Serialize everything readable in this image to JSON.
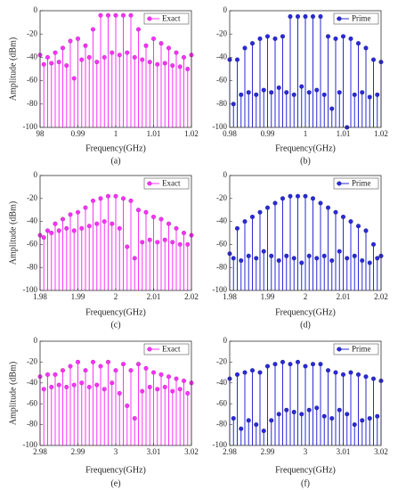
{
  "chart_data": [
    {
      "type": "stem",
      "caption": "(a)",
      "xlabel": "Frequency(GHz)",
      "ylabel": "Amplitude (dBm)",
      "legend": "upper right",
      "xlim": [
        0.98,
        1.02
      ],
      "xticks": [
        {
          "value": 0.98,
          "label": "98"
        },
        0.99,
        1,
        1.01,
        1.02
      ],
      "ylim": [
        -100,
        0
      ],
      "yticks": [
        0,
        -20,
        -40,
        -60,
        -80,
        -100
      ],
      "x": [
        0.98,
        0.981,
        0.982,
        0.983,
        0.984,
        0.985,
        0.986,
        0.987,
        0.988,
        0.989,
        0.99,
        0.991,
        0.992,
        0.993,
        0.994,
        0.995,
        0.996,
        0.997,
        0.998,
        0.999,
        1,
        1.001,
        1.002,
        1.003,
        1.004,
        1.005,
        1.006,
        1.007,
        1.008,
        1.009,
        1.01,
        1.011,
        1.012,
        1.013,
        1.014,
        1.015,
        1.016,
        1.017,
        1.018,
        1.019,
        1.02
      ],
      "series": [
        {
          "name": "Exact",
          "color": "#ff33ff",
          "values": [
            -38,
            -46,
            -40,
            -45,
            -36,
            -44,
            -32,
            -47,
            -26,
            -58,
            -24,
            -42,
            -30,
            -40,
            -16,
            -44,
            -4,
            -40,
            -4,
            -36,
            -4,
            -38,
            -4,
            -36,
            -4,
            -40,
            -16,
            -42,
            -30,
            -44,
            -24,
            -46,
            -28,
            -45,
            -32,
            -47,
            -36,
            -48,
            -40,
            -50,
            -38
          ]
        }
      ]
    },
    {
      "type": "stem",
      "caption": "(b)",
      "xlabel": "Frequency(GHz)",
      "legend": "upper right",
      "xlim": [
        0.98,
        1.02
      ],
      "xticks": [
        0.98,
        0.99,
        1,
        1.01,
        1.02
      ],
      "ylim": [
        -100,
        0
      ],
      "yticks": [
        0,
        -20,
        -40,
        -60,
        -80,
        -100
      ],
      "x": [
        0.98,
        0.981,
        0.982,
        0.983,
        0.984,
        0.985,
        0.986,
        0.987,
        0.988,
        0.989,
        0.99,
        0.991,
        0.992,
        0.993,
        0.994,
        0.995,
        0.996,
        0.997,
        0.998,
        0.999,
        1,
        1.001,
        1.002,
        1.003,
        1.004,
        1.005,
        1.006,
        1.007,
        1.008,
        1.009,
        1.01,
        1.011,
        1.012,
        1.013,
        1.014,
        1.015,
        1.016,
        1.017,
        1.018,
        1.019,
        1.02
      ],
      "series": [
        {
          "name": "Prime",
          "color": "#2a2ad8",
          "values": [
            -42,
            -80,
            -42,
            -72,
            -32,
            -70,
            -28,
            -72,
            -24,
            -68,
            -22,
            -70,
            -24,
            -66,
            -22,
            -70,
            -5,
            -72,
            -5,
            -65,
            -5,
            -70,
            -5,
            -68,
            -5,
            -72,
            -22,
            -84,
            -24,
            -70,
            -22,
            -100,
            -24,
            -72,
            -28,
            -70,
            -32,
            -74,
            -42,
            -72,
            -44
          ]
        }
      ]
    },
    {
      "type": "stem",
      "caption": "(c)",
      "xlabel": "Frequency(GHz)",
      "ylabel": "Amplitude (dBm)",
      "legend": "upper right",
      "xlim": [
        1.98,
        2.02
      ],
      "xticks": [
        1.98,
        1.99,
        2,
        2.01,
        2.02
      ],
      "ylim": [
        -100,
        0
      ],
      "yticks": [
        0,
        -20,
        -40,
        -60,
        -80,
        -100
      ],
      "x": [
        1.98,
        1.981,
        1.982,
        1.983,
        1.984,
        1.985,
        1.986,
        1.987,
        1.988,
        1.989,
        1.99,
        1.991,
        1.992,
        1.993,
        1.994,
        1.995,
        1.996,
        1.997,
        1.998,
        1.999,
        2,
        2.001,
        2.002,
        2.003,
        2.004,
        2.005,
        2.006,
        2.007,
        2.008,
        2.009,
        2.01,
        2.011,
        2.012,
        2.013,
        2.014,
        2.015,
        2.016,
        2.017,
        2.018,
        2.019,
        2.02
      ],
      "series": [
        {
          "name": "Exact",
          "color": "#ff33ff",
          "values": [
            -52,
            -54,
            -48,
            -50,
            -42,
            -48,
            -38,
            -46,
            -34,
            -48,
            -32,
            -46,
            -28,
            -44,
            -22,
            -42,
            -20,
            -40,
            -18,
            -42,
            -18,
            -46,
            -20,
            -62,
            -22,
            -72,
            -30,
            -58,
            -32,
            -56,
            -36,
            -58,
            -38,
            -56,
            -42,
            -58,
            -46,
            -60,
            -50,
            -60,
            -52
          ]
        }
      ]
    },
    {
      "type": "stem",
      "caption": "(d)",
      "xlabel": "Frequency(GHz)",
      "legend": "upper right",
      "xlim": [
        1.98,
        2.02
      ],
      "xticks": [
        1.98,
        1.99,
        2,
        2.01,
        2.02
      ],
      "ylim": [
        -100,
        0
      ],
      "yticks": [
        0,
        -20,
        -40,
        -60,
        -80,
        -100
      ],
      "x": [
        1.98,
        1.981,
        1.982,
        1.983,
        1.984,
        1.985,
        1.986,
        1.987,
        1.988,
        1.989,
        1.99,
        1.991,
        1.992,
        1.993,
        1.994,
        1.995,
        1.996,
        1.997,
        1.998,
        1.999,
        2,
        2.001,
        2.002,
        2.003,
        2.004,
        2.005,
        2.006,
        2.007,
        2.008,
        2.009,
        2.01,
        2.011,
        2.012,
        2.013,
        2.014,
        2.015,
        2.016,
        2.017,
        2.018,
        2.019,
        2.02
      ],
      "series": [
        {
          "name": "Prime",
          "color": "#2a2ad8",
          "values": [
            -68,
            -72,
            -46,
            -74,
            -40,
            -70,
            -36,
            -72,
            -32,
            -66,
            -28,
            -70,
            -24,
            -74,
            -20,
            -70,
            -18,
            -72,
            -18,
            -76,
            -18,
            -70,
            -20,
            -72,
            -24,
            -70,
            -28,
            -74,
            -32,
            -66,
            -36,
            -72,
            -40,
            -70,
            -44,
            -74,
            -48,
            -76,
            -60,
            -72,
            -70
          ]
        }
      ]
    },
    {
      "type": "stem",
      "caption": "(e)",
      "xlabel": "Frequency(GHz)",
      "ylabel": "Amplitude (dBm)",
      "legend": "upper right",
      "xlim": [
        2.98,
        3.02
      ],
      "xticks": [
        2.98,
        2.99,
        3,
        3.01,
        3.02
      ],
      "ylim": [
        -100,
        0
      ],
      "yticks": [
        0,
        -20,
        -40,
        -60,
        -80,
        -100
      ],
      "x": [
        2.98,
        2.981,
        2.982,
        2.983,
        2.984,
        2.985,
        2.986,
        2.987,
        2.988,
        2.989,
        2.99,
        2.991,
        2.992,
        2.993,
        2.994,
        2.995,
        2.996,
        2.997,
        2.998,
        2.999,
        3,
        3.001,
        3.002,
        3.003,
        3.004,
        3.005,
        3.006,
        3.007,
        3.008,
        3.009,
        3.01,
        3.011,
        3.012,
        3.013,
        3.014,
        3.015,
        3.016,
        3.017,
        3.018,
        3.019,
        3.02
      ],
      "series": [
        {
          "name": "Exact",
          "color": "#ff33ff",
          "values": [
            -34,
            -46,
            -32,
            -44,
            -32,
            -42,
            -28,
            -44,
            -24,
            -42,
            -20,
            -40,
            -28,
            -44,
            -20,
            -42,
            -24,
            -46,
            -20,
            -40,
            -28,
            -50,
            -22,
            -62,
            -28,
            -74,
            -22,
            -48,
            -26,
            -44,
            -30,
            -46,
            -32,
            -44,
            -34,
            -48,
            -36,
            -46,
            -38,
            -50,
            -40
          ]
        }
      ]
    },
    {
      "type": "stem",
      "caption": "(f)",
      "xlabel": "Frequency(GHz)",
      "legend": "upper right",
      "xlim": [
        2.98,
        3.02
      ],
      "xticks": [
        2.98,
        2.99,
        3,
        3.01,
        3.02
      ],
      "ylim": [
        -100,
        0
      ],
      "yticks": [
        0,
        -20,
        -40,
        -60,
        -80,
        -100
      ],
      "x": [
        2.98,
        2.981,
        2.982,
        2.983,
        2.984,
        2.985,
        2.986,
        2.987,
        2.988,
        2.989,
        2.99,
        2.991,
        2.992,
        2.993,
        2.994,
        2.995,
        2.996,
        2.997,
        2.998,
        2.999,
        3,
        3.001,
        3.002,
        3.003,
        3.004,
        3.005,
        3.006,
        3.007,
        3.008,
        3.009,
        3.01,
        3.011,
        3.012,
        3.013,
        3.014,
        3.015,
        3.016,
        3.017,
        3.018,
        3.019,
        3.02
      ],
      "series": [
        {
          "name": "Prime",
          "color": "#2a2ad8",
          "values": [
            -36,
            -74,
            -32,
            -84,
            -30,
            -76,
            -28,
            -80,
            -30,
            -86,
            -24,
            -76,
            -22,
            -70,
            -20,
            -66,
            -22,
            -68,
            -20,
            -70,
            -24,
            -66,
            -22,
            -64,
            -22,
            -72,
            -28,
            -74,
            -30,
            -66,
            -32,
            -70,
            -30,
            -80,
            -32,
            -76,
            -34,
            -74,
            -36,
            -72,
            -38
          ]
        }
      ]
    }
  ]
}
